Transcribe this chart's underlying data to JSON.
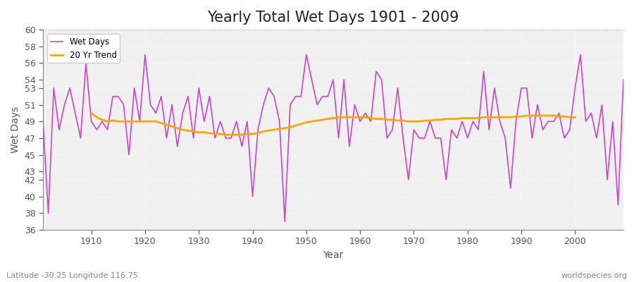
{
  "title": "Yearly Total Wet Days 1901 - 2009",
  "xlabel": "Year",
  "ylabel": "Wet Days",
  "subtitle": "Latitude -30.25 Longitude 116.75",
  "watermark": "worldspecies.org",
  "years": [
    1901,
    1902,
    1903,
    1904,
    1905,
    1906,
    1907,
    1908,
    1909,
    1910,
    1911,
    1912,
    1913,
    1914,
    1915,
    1916,
    1917,
    1918,
    1919,
    1920,
    1921,
    1922,
    1923,
    1924,
    1925,
    1926,
    1927,
    1928,
    1929,
    1930,
    1931,
    1932,
    1933,
    1934,
    1935,
    1936,
    1937,
    1938,
    1939,
    1940,
    1941,
    1942,
    1943,
    1944,
    1945,
    1946,
    1947,
    1948,
    1949,
    1950,
    1951,
    1952,
    1953,
    1954,
    1955,
    1956,
    1957,
    1958,
    1959,
    1960,
    1961,
    1962,
    1963,
    1964,
    1965,
    1966,
    1967,
    1968,
    1969,
    1970,
    1971,
    1972,
    1973,
    1974,
    1975,
    1976,
    1977,
    1978,
    1979,
    1980,
    1981,
    1982,
    1983,
    1984,
    1985,
    1986,
    1987,
    1988,
    1989,
    1990,
    1991,
    1992,
    1993,
    1994,
    1995,
    1996,
    1997,
    1998,
    1999,
    2000,
    2001,
    2002,
    2003,
    2004,
    2005,
    2006,
    2007,
    2008,
    2009
  ],
  "wet_days": [
    49,
    38,
    53,
    48,
    51,
    53,
    50,
    47,
    56,
    49,
    48,
    49,
    48,
    52,
    52,
    51,
    45,
    53,
    49,
    57,
    51,
    50,
    52,
    47,
    51,
    46,
    50,
    52,
    47,
    53,
    49,
    52,
    47,
    49,
    47,
    47,
    49,
    46,
    49,
    40,
    48,
    51,
    53,
    52,
    49,
    37,
    51,
    52,
    52,
    57,
    54,
    51,
    52,
    52,
    54,
    47,
    54,
    46,
    51,
    49,
    50,
    49,
    55,
    54,
    47,
    48,
    53,
    47,
    42,
    48,
    47,
    47,
    49,
    47,
    47,
    42,
    48,
    47,
    49,
    47,
    49,
    48,
    55,
    48,
    53,
    49,
    47,
    41,
    49,
    53,
    53,
    47,
    51,
    48,
    49,
    49,
    50,
    47,
    48,
    53,
    57,
    49,
    50,
    47,
    51,
    42,
    49,
    39,
    54
  ],
  "trend_years": [
    1910,
    1911,
    1912,
    1913,
    1914,
    1915,
    1916,
    1917,
    1918,
    1919,
    1920,
    1921,
    1922,
    1923,
    1924,
    1925,
    1926,
    1927,
    1928,
    1929,
    1930,
    1931,
    1932,
    1933,
    1934,
    1935,
    1936,
    1937,
    1938,
    1939,
    1940,
    1941,
    1942,
    1943,
    1944,
    1945,
    1946,
    1947,
    1948,
    1949,
    1950,
    1951,
    1952,
    1953,
    1954,
    1955,
    1956,
    1957,
    1958,
    1959,
    1960,
    1961,
    1962,
    1963,
    1964,
    1965,
    1966,
    1967,
    1968,
    1969,
    1970,
    1971,
    1972,
    1973,
    1974,
    1975,
    1976,
    1977,
    1978,
    1979,
    1980,
    1981,
    1982,
    1983,
    1984,
    1985,
    1986,
    1987,
    1988,
    1989,
    1990,
    1991,
    1992,
    1993,
    1994,
    1995,
    1996,
    1997,
    1998,
    1999,
    2000
  ],
  "trend_values": [
    50.0,
    49.5,
    49.2,
    49.0,
    49.1,
    49.0,
    49.0,
    49.0,
    49.0,
    49.0,
    49.0,
    49.0,
    49.0,
    48.8,
    48.6,
    48.4,
    48.2,
    48.0,
    47.9,
    47.8,
    47.7,
    47.7,
    47.6,
    47.5,
    47.5,
    47.4,
    47.4,
    47.4,
    47.4,
    47.5,
    47.5,
    47.6,
    47.8,
    47.9,
    48.0,
    48.1,
    48.2,
    48.3,
    48.5,
    48.7,
    48.9,
    49.0,
    49.1,
    49.2,
    49.3,
    49.4,
    49.5,
    49.5,
    49.5,
    49.5,
    49.5,
    49.5,
    49.4,
    49.3,
    49.3,
    49.2,
    49.2,
    49.1,
    49.1,
    49.0,
    49.0,
    49.0,
    49.1,
    49.1,
    49.2,
    49.2,
    49.3,
    49.3,
    49.3,
    49.4,
    49.4,
    49.4,
    49.4,
    49.5,
    49.5,
    49.5,
    49.5,
    49.5,
    49.5,
    49.6,
    49.6,
    49.7,
    49.7,
    49.7,
    49.7,
    49.7,
    49.7,
    49.6,
    49.6,
    49.5,
    49.5
  ],
  "wet_days_color": "#cc44cc",
  "trend_color": "#ffa500",
  "fig_bg_color": "#ffffff",
  "plot_bg_color": "#f0f0f0",
  "grid_color": "#ffffff",
  "ylim": [
    36,
    60
  ],
  "yticks": [
    36,
    38,
    40,
    42,
    43,
    45,
    47,
    49,
    51,
    53,
    54,
    56,
    58,
    60
  ],
  "xticks": [
    1910,
    1920,
    1930,
    1940,
    1950,
    1960,
    1970,
    1980,
    1990,
    2000
  ],
  "title_fontsize": 15,
  "label_fontsize": 10,
  "tick_fontsize": 9
}
